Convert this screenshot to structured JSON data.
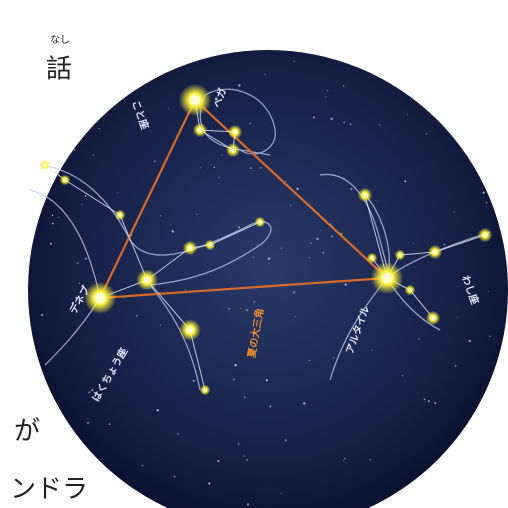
{
  "page_text": {
    "ruby": "なし",
    "heading_char": "話",
    "body_char": "が",
    "bottom_text": "ンドラ"
  },
  "labels": {
    "lyra": "こと座",
    "vega": "ベガ",
    "deneb": "デネブ",
    "cygnus": "はくちょう座",
    "triangle": "夏の大三角",
    "altair": "アルタイル",
    "aquila": "わし座"
  }
}
